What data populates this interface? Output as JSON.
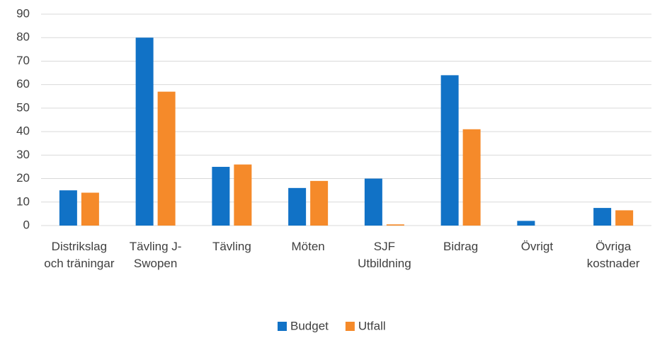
{
  "chart_data": {
    "type": "bar",
    "categories": [
      "Distrikslag och träningar",
      "Tävling J-Swopen",
      "Tävling",
      "Möten",
      "SJF Utbildning",
      "Bidrag",
      "Övrigt",
      "Övriga kostnader"
    ],
    "series": [
      {
        "name": "Budget",
        "color": "#1172c6",
        "values": [
          15,
          80,
          25,
          16,
          20,
          64,
          2,
          7.5
        ]
      },
      {
        "name": "Utfall",
        "color": "#f58a2a",
        "values": [
          14,
          57,
          26,
          19,
          0.5,
          41,
          0,
          6.5
        ]
      }
    ],
    "ylim": [
      0,
      90
    ],
    "yticks": [
      0,
      10,
      20,
      30,
      40,
      50,
      60,
      70,
      80,
      90
    ],
    "grid": true,
    "legend": "bottom"
  }
}
